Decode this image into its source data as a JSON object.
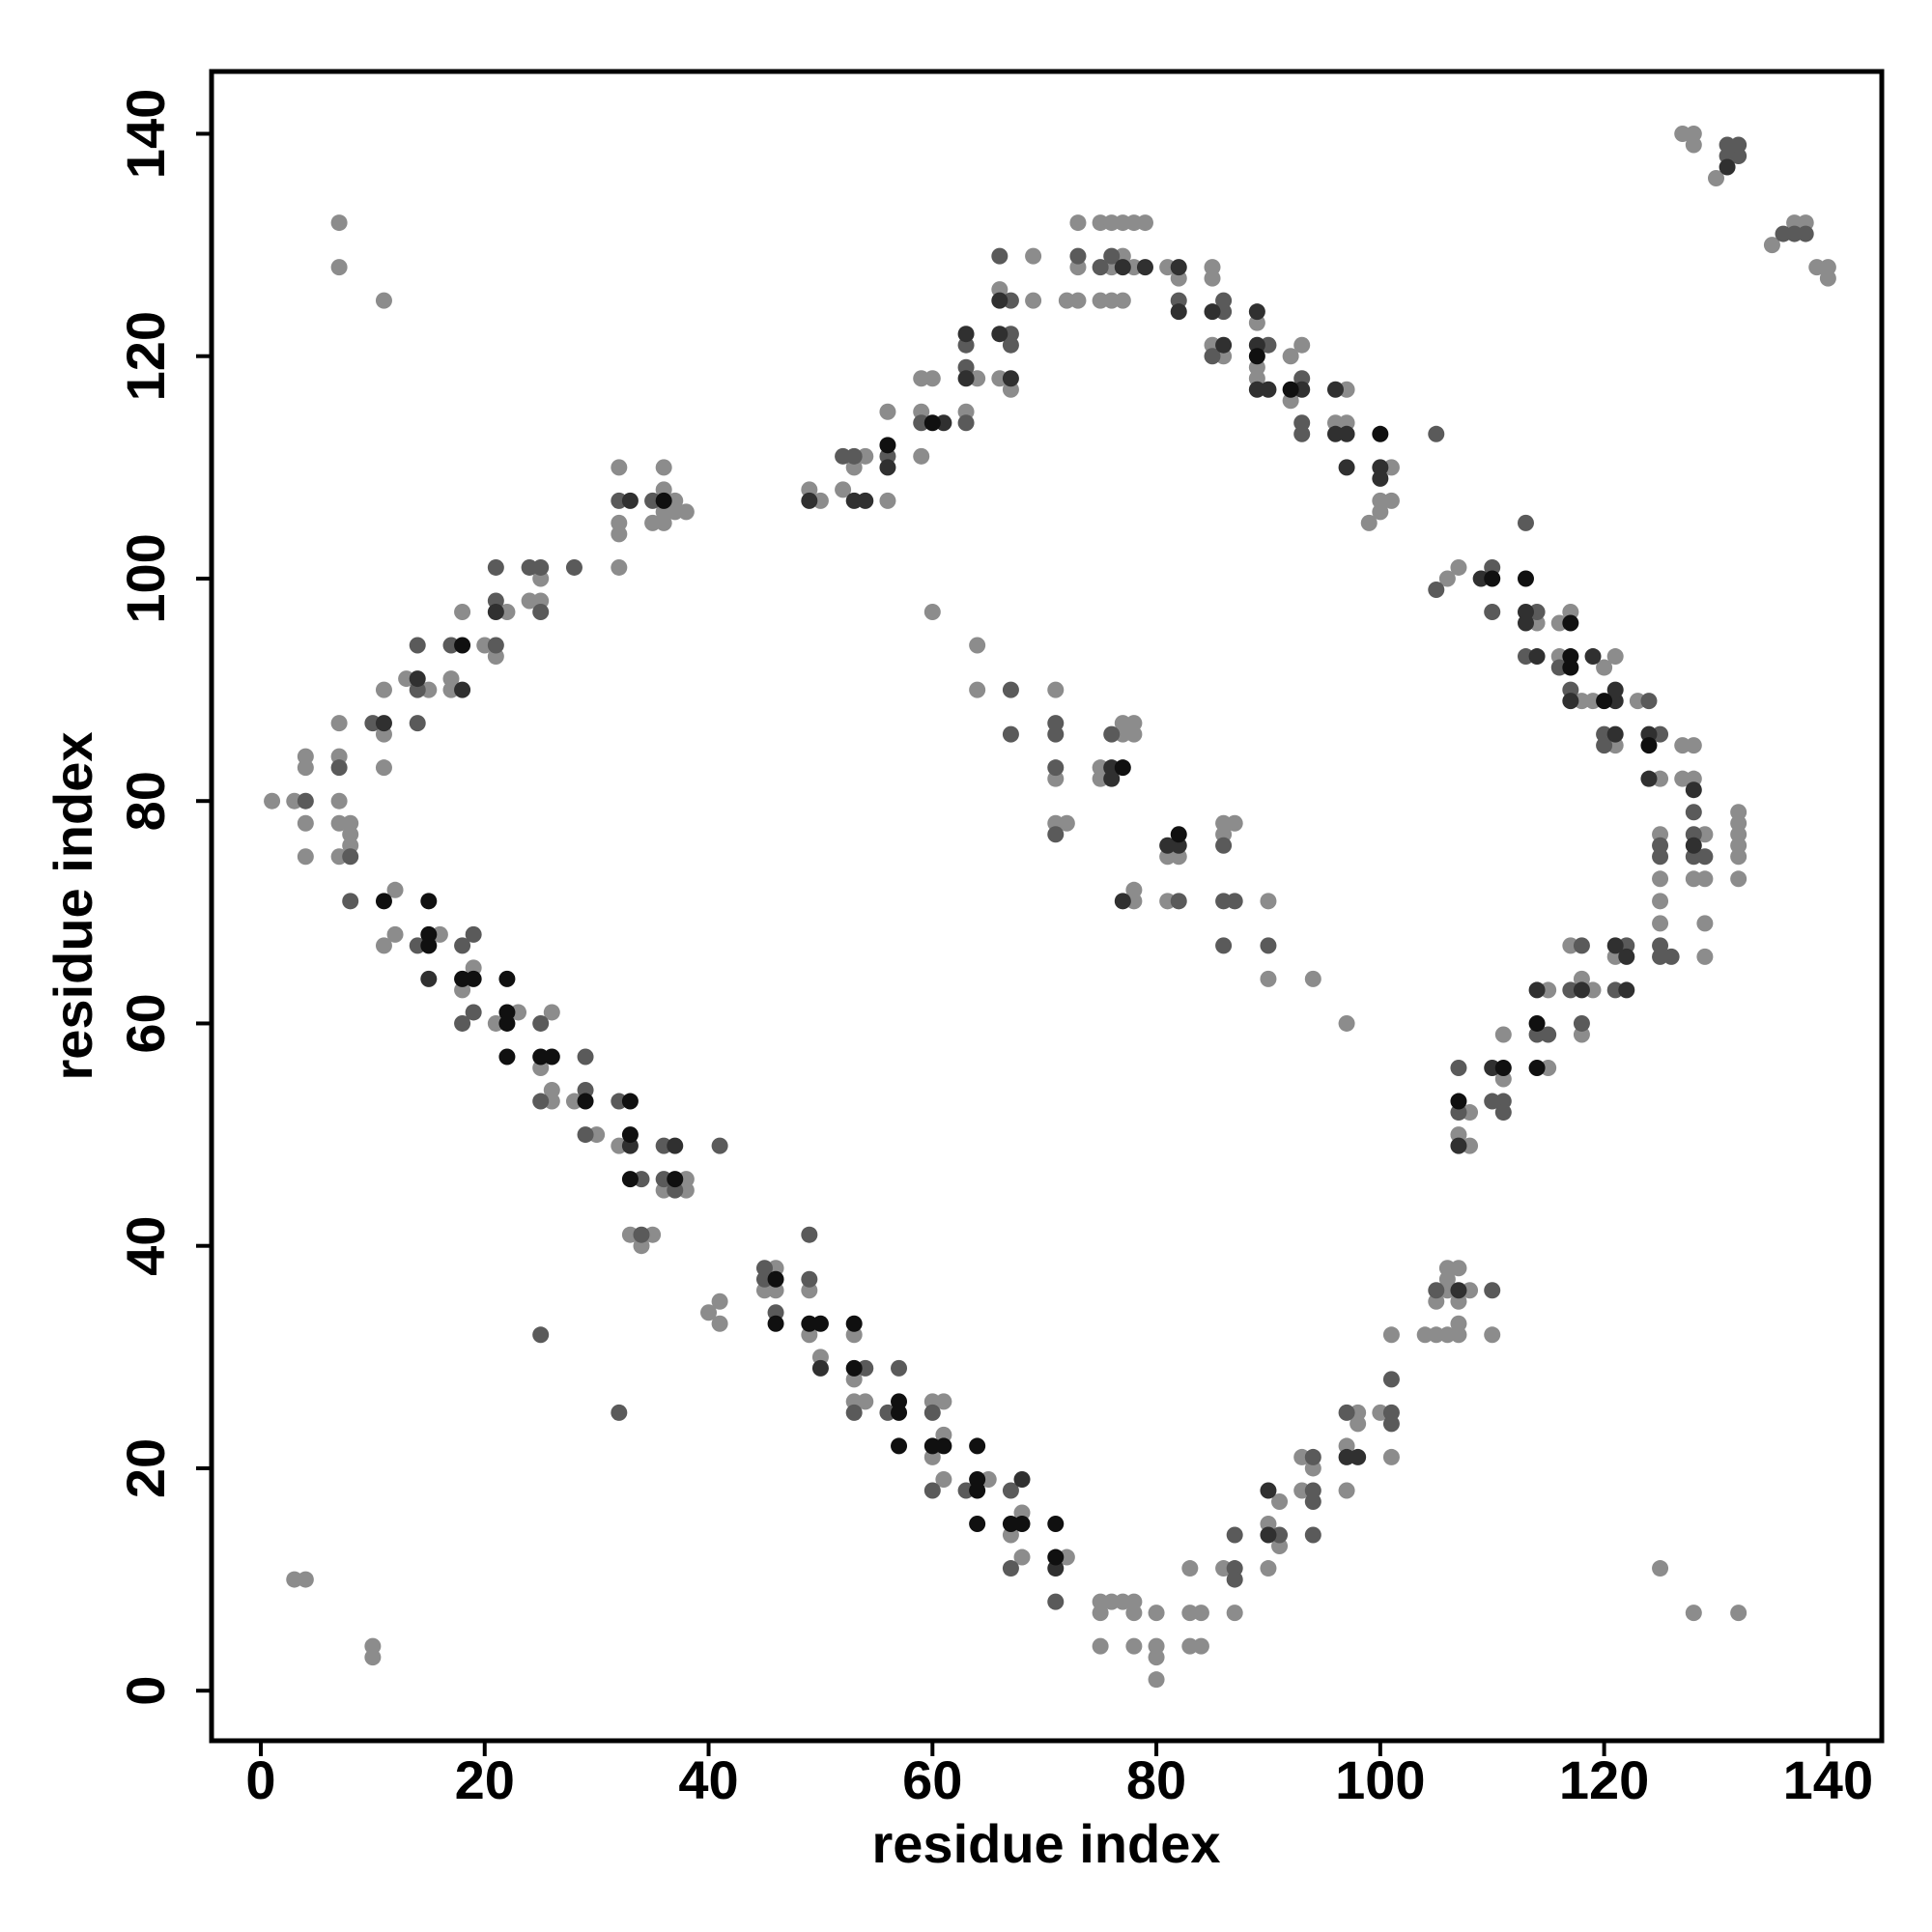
{
  "chart_data": {
    "type": "scatter",
    "x_label": "residue index",
    "y_label": "residue index",
    "xlim": [
      -4.4,
      144.8
    ],
    "ylim": [
      -4.5,
      145.6
    ],
    "xticks": [
      0,
      20,
      40,
      60,
      80,
      100,
      120,
      140
    ],
    "yticks": [
      0,
      20,
      40,
      60,
      80,
      100,
      120,
      140
    ],
    "grid": false,
    "series": [
      {
        "color": "#8c8c8c",
        "x": [
          12,
          11,
          12,
          16,
          18,
          19,
          21,
          23,
          26,
          25,
          26,
          26,
          28,
          30,
          32,
          33,
          35,
          34,
          38,
          36,
          38,
          40,
          41,
          41,
          46,
          45,
          46,
          49,
          49,
          50,
          53,
          53,
          53,
          54,
          60,
          61,
          60,
          61,
          61,
          65,
          67,
          68,
          68,
          72,
          75,
          76,
          77,
          78,
          75,
          78,
          75,
          78,
          80,
          80,
          80,
          80,
          83,
          84,
          83,
          84,
          83,
          86,
          87,
          90,
          90,
          91,
          91,
          93,
          93,
          94,
          98,
          97,
          97,
          98,
          100,
          101,
          101,
          104,
          105,
          106,
          105,
          106,
          106,
          106,
          107,
          107,
          107,
          107,
          108,
          110,
          107,
          108,
          108,
          111,
          111,
          115,
          115,
          117,
          119,
          118,
          118,
          121,
          125,
          125,
          125,
          125,
          128,
          128,
          129,
          129,
          129,
          129,
          132,
          132,
          132,
          132,
          132,
          132,
          106,
          107,
          114,
          116,
          116,
          117,
          118,
          120,
          121,
          119,
          121,
          123,
          125,
          127,
          128,
          127,
          49,
          50,
          52,
          53,
          54,
          56,
          56,
          59,
          59,
          60,
          59,
          63,
          64,
          66,
          66,
          67,
          69,
          69,
          72,
          73,
          73,
          73,
          75,
          76,
          77,
          78,
          79,
          77,
          76,
          78,
          75,
          76,
          77,
          81,
          82,
          85,
          85,
          85,
          86,
          89,
          89,
          89,
          92,
          93,
          92,
          96,
          97,
          97,
          101,
          101,
          100,
          100,
          99,
          1,
          3,
          4,
          4,
          4,
          4,
          7,
          7,
          7,
          8,
          7,
          8,
          8,
          7,
          11,
          11,
          11,
          13,
          15,
          17,
          17,
          18,
          20,
          21,
          22,
          24,
          25,
          25,
          32,
          32,
          32,
          32,
          36,
          36,
          36,
          35,
          36,
          37,
          37,
          38,
          60,
          64,
          64,
          71,
          71,
          71,
          72,
          75,
          75,
          77,
          78,
          77,
          78,
          78,
          78,
          81,
          82,
          81,
          86,
          87,
          86,
          90,
          90,
          94,
          97,
          3,
          4,
          10,
          10,
          7,
          7,
          11,
          125,
          128,
          132,
          127,
          128,
          128,
          130,
          135,
          137,
          138,
          139,
          140,
          140
        ],
        "values": [
          72,
          67,
          68,
          68,
          63,
          65,
          60,
          61,
          61,
          56,
          54,
          53,
          53,
          50,
          49,
          41,
          41,
          40,
          46,
          45,
          45,
          34,
          35,
          33,
          38,
          36,
          36,
          36,
          32,
          30,
          32,
          28,
          26,
          26,
          26,
          26,
          21,
          23,
          19,
          19,
          14,
          16,
          12,
          12,
          8,
          8,
          8,
          8,
          7,
          7,
          4,
          4,
          7,
          4,
          3,
          1,
          7,
          7,
          4,
          4,
          11,
          11,
          7,
          15,
          11,
          13,
          17,
          21,
          18,
          20,
          25,
          22,
          18,
          24,
          25,
          21,
          32,
          32,
          32,
          32,
          35,
          36,
          37,
          38,
          38,
          35,
          33,
          32,
          36,
          32,
          50,
          49,
          52,
          59,
          55,
          63,
          56,
          67,
          63,
          64,
          59,
          66,
          77,
          73,
          71,
          69,
          82,
          73,
          77,
          73,
          69,
          66,
          79,
          78,
          77,
          76,
          75,
          73,
          100,
          101,
          96,
          96,
          93,
          97,
          89,
          92,
          93,
          89,
          85,
          89,
          82,
          85,
          85,
          82,
          108,
          107,
          108,
          110,
          111,
          107,
          115,
          115,
          111,
          118,
          118,
          115,
          118,
          126,
          118,
          117,
          129,
          125,
          125,
          132,
          128,
          125,
          132,
          132,
          132,
          132,
          132,
          129,
          128,
          128,
          125,
          125,
          125,
          128,
          127,
          128,
          127,
          121,
          120,
          123,
          119,
          118,
          120,
          121,
          116,
          114,
          114,
          117,
          110,
          107,
          107,
          106,
          105,
          80,
          80,
          78,
          75,
          83,
          84,
          84,
          80,
          78,
          78,
          75,
          76,
          77,
          87,
          86,
          83,
          90,
          91,
          90,
          91,
          90,
          97,
          94,
          93,
          97,
          98,
          98,
          100,
          110,
          105,
          104,
          101,
          110,
          108,
          106,
          105,
          105,
          107,
          106,
          106,
          97,
          94,
          90,
          90,
          82,
          78,
          78,
          83,
          82,
          86,
          86,
          87,
          87,
          71,
          72,
          75,
          75,
          71,
          78,
          78,
          77,
          71,
          64,
          64,
          60,
          10,
          10,
          4,
          3,
          132,
          128,
          125,
          11,
          7,
          7,
          140,
          140,
          139,
          136,
          130,
          132,
          132,
          128,
          128,
          127
        ]
      },
      {
        "color": "#5a5a5a",
        "x": [
          14,
          18,
          19,
          18,
          19,
          25,
          25,
          29,
          29,
          29,
          32,
          34,
          34,
          36,
          36,
          37,
          41,
          45,
          45,
          46,
          49,
          49,
          54,
          53,
          56,
          57,
          60,
          60,
          63,
          67,
          67,
          71,
          87,
          87,
          87,
          91,
          94,
          94,
          94,
          94,
          97,
          101,
          101,
          101,
          105,
          110,
          107,
          107,
          111,
          110,
          111,
          114,
          115,
          118,
          117,
          118,
          121,
          122,
          125,
          125,
          125,
          125,
          126,
          128,
          128,
          128,
          129,
          105,
          110,
          110,
          113,
          113,
          114,
          116,
          117,
          120,
          120,
          124,
          125,
          52,
          53,
          56,
          59,
          63,
          63,
          63,
          67,
          67,
          66,
          67,
          73,
          76,
          75,
          82,
          86,
          86,
          85,
          90,
          93,
          93,
          93,
          105,
          4,
          7,
          8,
          8,
          10,
          14,
          14,
          14,
          17,
          21,
          21,
          21,
          24,
          25,
          25,
          28,
          32,
          35,
          67,
          67,
          71,
          71,
          71,
          71,
          76,
          82,
          86,
          86,
          87,
          86,
          90,
          25,
          32,
          131,
          132,
          131,
          132,
          136,
          137,
          138
        ],
        "values": [
          67,
          67,
          68,
          60,
          61,
          60,
          53,
          57,
          54,
          50,
          53,
          46,
          41,
          49,
          46,
          45,
          49,
          38,
          37,
          34,
          41,
          37,
          29,
          25,
          25,
          29,
          25,
          18,
          18,
          18,
          11,
          8,
          11,
          10,
          14,
          14,
          21,
          18,
          17,
          14,
          25,
          25,
          24,
          28,
          36,
          36,
          56,
          52,
          53,
          53,
          52,
          59,
          59,
          67,
          63,
          60,
          63,
          67,
          76,
          75,
          67,
          66,
          66,
          79,
          77,
          75,
          75,
          99,
          101,
          97,
          105,
          93,
          97,
          92,
          90,
          86,
          85,
          89,
          86,
          111,
          111,
          111,
          114,
          121,
          119,
          114,
          122,
          121,
          129,
          125,
          129,
          129,
          128,
          125,
          124,
          125,
          120,
          121,
          118,
          114,
          113,
          113,
          80,
          83,
          75,
          71,
          87,
          94,
          90,
          87,
          94,
          94,
          98,
          101,
          101,
          101,
          97,
          101,
          107,
          107,
          90,
          86,
          87,
          86,
          83,
          77,
          86,
          71,
          76,
          71,
          71,
          67,
          67,
          32,
          25,
          138,
          138,
          139,
          139,
          131,
          131,
          131
        ]
      },
      {
        "color": "#303030",
        "x": [
          15,
          33,
          37,
          50,
          68,
          71,
          97,
          98,
          90,
          90,
          107,
          107,
          110,
          114,
          118,
          121,
          122,
          122,
          128,
          109,
          113,
          113,
          114,
          117,
          119,
          121,
          121,
          121,
          124,
          124,
          128,
          49,
          53,
          54,
          56,
          61,
          63,
          63,
          66,
          66,
          67,
          77,
          79,
          82,
          82,
          85,
          86,
          89,
          89,
          89,
          90,
          93,
          96,
          96,
          97,
          97,
          100,
          100,
          11,
          14,
          18,
          21,
          33,
          76,
          76,
          77,
          81,
          82,
          131
        ],
        "values": [
          64,
          49,
          49,
          29,
          19,
          11,
          21,
          21,
          18,
          14,
          36,
          49,
          56,
          63,
          63,
          67,
          66,
          63,
          76,
          100,
          97,
          96,
          93,
          89,
          93,
          89,
          90,
          86,
          86,
          82,
          81,
          107,
          107,
          107,
          110,
          114,
          122,
          118,
          125,
          122,
          118,
          128,
          128,
          128,
          124,
          124,
          121,
          124,
          121,
          117,
          117,
          117,
          117,
          113,
          113,
          110,
          110,
          109,
          87,
          91,
          90,
          97,
          107,
          82,
          83,
          71,
          76,
          76,
          137
        ]
      },
      {
        "color": "#101010",
        "x": [
          11,
          15,
          15,
          15,
          18,
          19,
          22,
          22,
          22,
          22,
          25,
          26,
          29,
          33,
          33,
          33,
          37,
          46,
          46,
          49,
          50,
          53,
          53,
          57,
          57,
          57,
          60,
          61,
          64,
          64,
          64,
          64,
          67,
          68,
          71,
          71,
          107,
          111,
          114,
          114,
          110,
          113,
          117,
          117,
          117,
          120,
          124,
          56,
          60,
          89,
          92,
          100,
          36,
          18,
          77,
          82
        ],
        "values": [
          71,
          71,
          68,
          67,
          64,
          64,
          64,
          61,
          60,
          57,
          57,
          57,
          53,
          53,
          50,
          46,
          46,
          37,
          33,
          33,
          33,
          33,
          29,
          26,
          25,
          22,
          22,
          22,
          22,
          19,
          18,
          15,
          15,
          15,
          15,
          12,
          53,
          56,
          60,
          56,
          100,
          100,
          96,
          93,
          92,
          89,
          85,
          112,
          114,
          120,
          117,
          113,
          107,
          94,
          83,
          77
        ]
      }
    ]
  }
}
